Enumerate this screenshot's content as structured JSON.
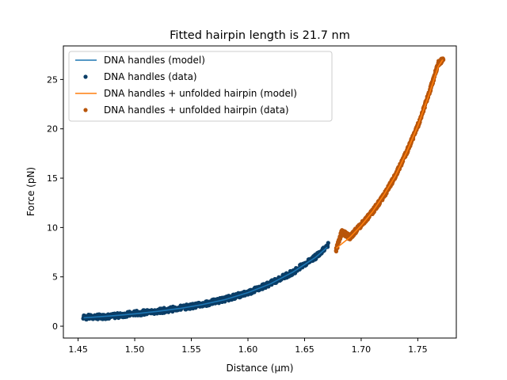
{
  "chart_data": {
    "type": "scatter",
    "title": "Fitted hairpin length is 21.7 nm",
    "xlabel": "Distance (μm)",
    "ylabel": "Force (pN)",
    "xlim": [
      1.437,
      1.784
    ],
    "ylim": [
      -1.2,
      28.4
    ],
    "xticks": [
      1.45,
      1.5,
      1.55,
      1.6,
      1.65,
      1.7,
      1.75
    ],
    "xtick_labels": [
      "1.45",
      "1.50",
      "1.55",
      "1.60",
      "1.65",
      "1.70",
      "1.75"
    ],
    "yticks": [
      0,
      5,
      10,
      15,
      20,
      25
    ],
    "ytick_labels": [
      "0",
      "5",
      "10",
      "15",
      "20",
      "25"
    ],
    "grid": false,
    "legend_position": "top-left",
    "series": [
      {
        "name": "DNA handles (model)",
        "kind": "line",
        "color": "#1f77b4",
        "x": [
          1.455,
          1.48,
          1.5,
          1.52,
          1.54,
          1.56,
          1.58,
          1.6,
          1.62,
          1.64,
          1.66,
          1.67
        ],
        "y": [
          0.85,
          1.05,
          1.25,
          1.5,
          1.8,
          2.2,
          2.7,
          3.4,
          4.3,
          5.5,
          7.0,
          8.0
        ]
      },
      {
        "name": "DNA handles (data)",
        "kind": "scatter",
        "color": "#0a3d66",
        "x": [
          1.455,
          1.48,
          1.5,
          1.52,
          1.54,
          1.56,
          1.58,
          1.6,
          1.62,
          1.64,
          1.66,
          1.67
        ],
        "y": [
          0.9,
          1.0,
          1.3,
          1.5,
          1.85,
          2.2,
          2.75,
          3.4,
          4.35,
          5.5,
          7.05,
          8.2
        ]
      },
      {
        "name": "DNA handles + unfolded hairpin (model)",
        "kind": "line",
        "color": "#ff7f0e",
        "x": [
          1.678,
          1.69,
          1.7,
          1.71,
          1.72,
          1.73,
          1.74,
          1.75,
          1.76,
          1.768,
          1.772
        ],
        "y": [
          7.9,
          9.0,
          10.2,
          11.6,
          13.3,
          15.2,
          17.6,
          20.3,
          23.5,
          26.3,
          27.0
        ]
      },
      {
        "name": "DNA handles + unfolded hairpin (data)",
        "kind": "scatter",
        "color": "#b8550a",
        "x": [
          1.678,
          1.683,
          1.69,
          1.7,
          1.71,
          1.72,
          1.73,
          1.74,
          1.75,
          1.76,
          1.768,
          1.772
        ],
        "y": [
          7.8,
          9.6,
          9.0,
          10.3,
          11.6,
          13.2,
          15.2,
          17.6,
          20.3,
          23.6,
          26.6,
          27.0
        ]
      }
    ]
  }
}
